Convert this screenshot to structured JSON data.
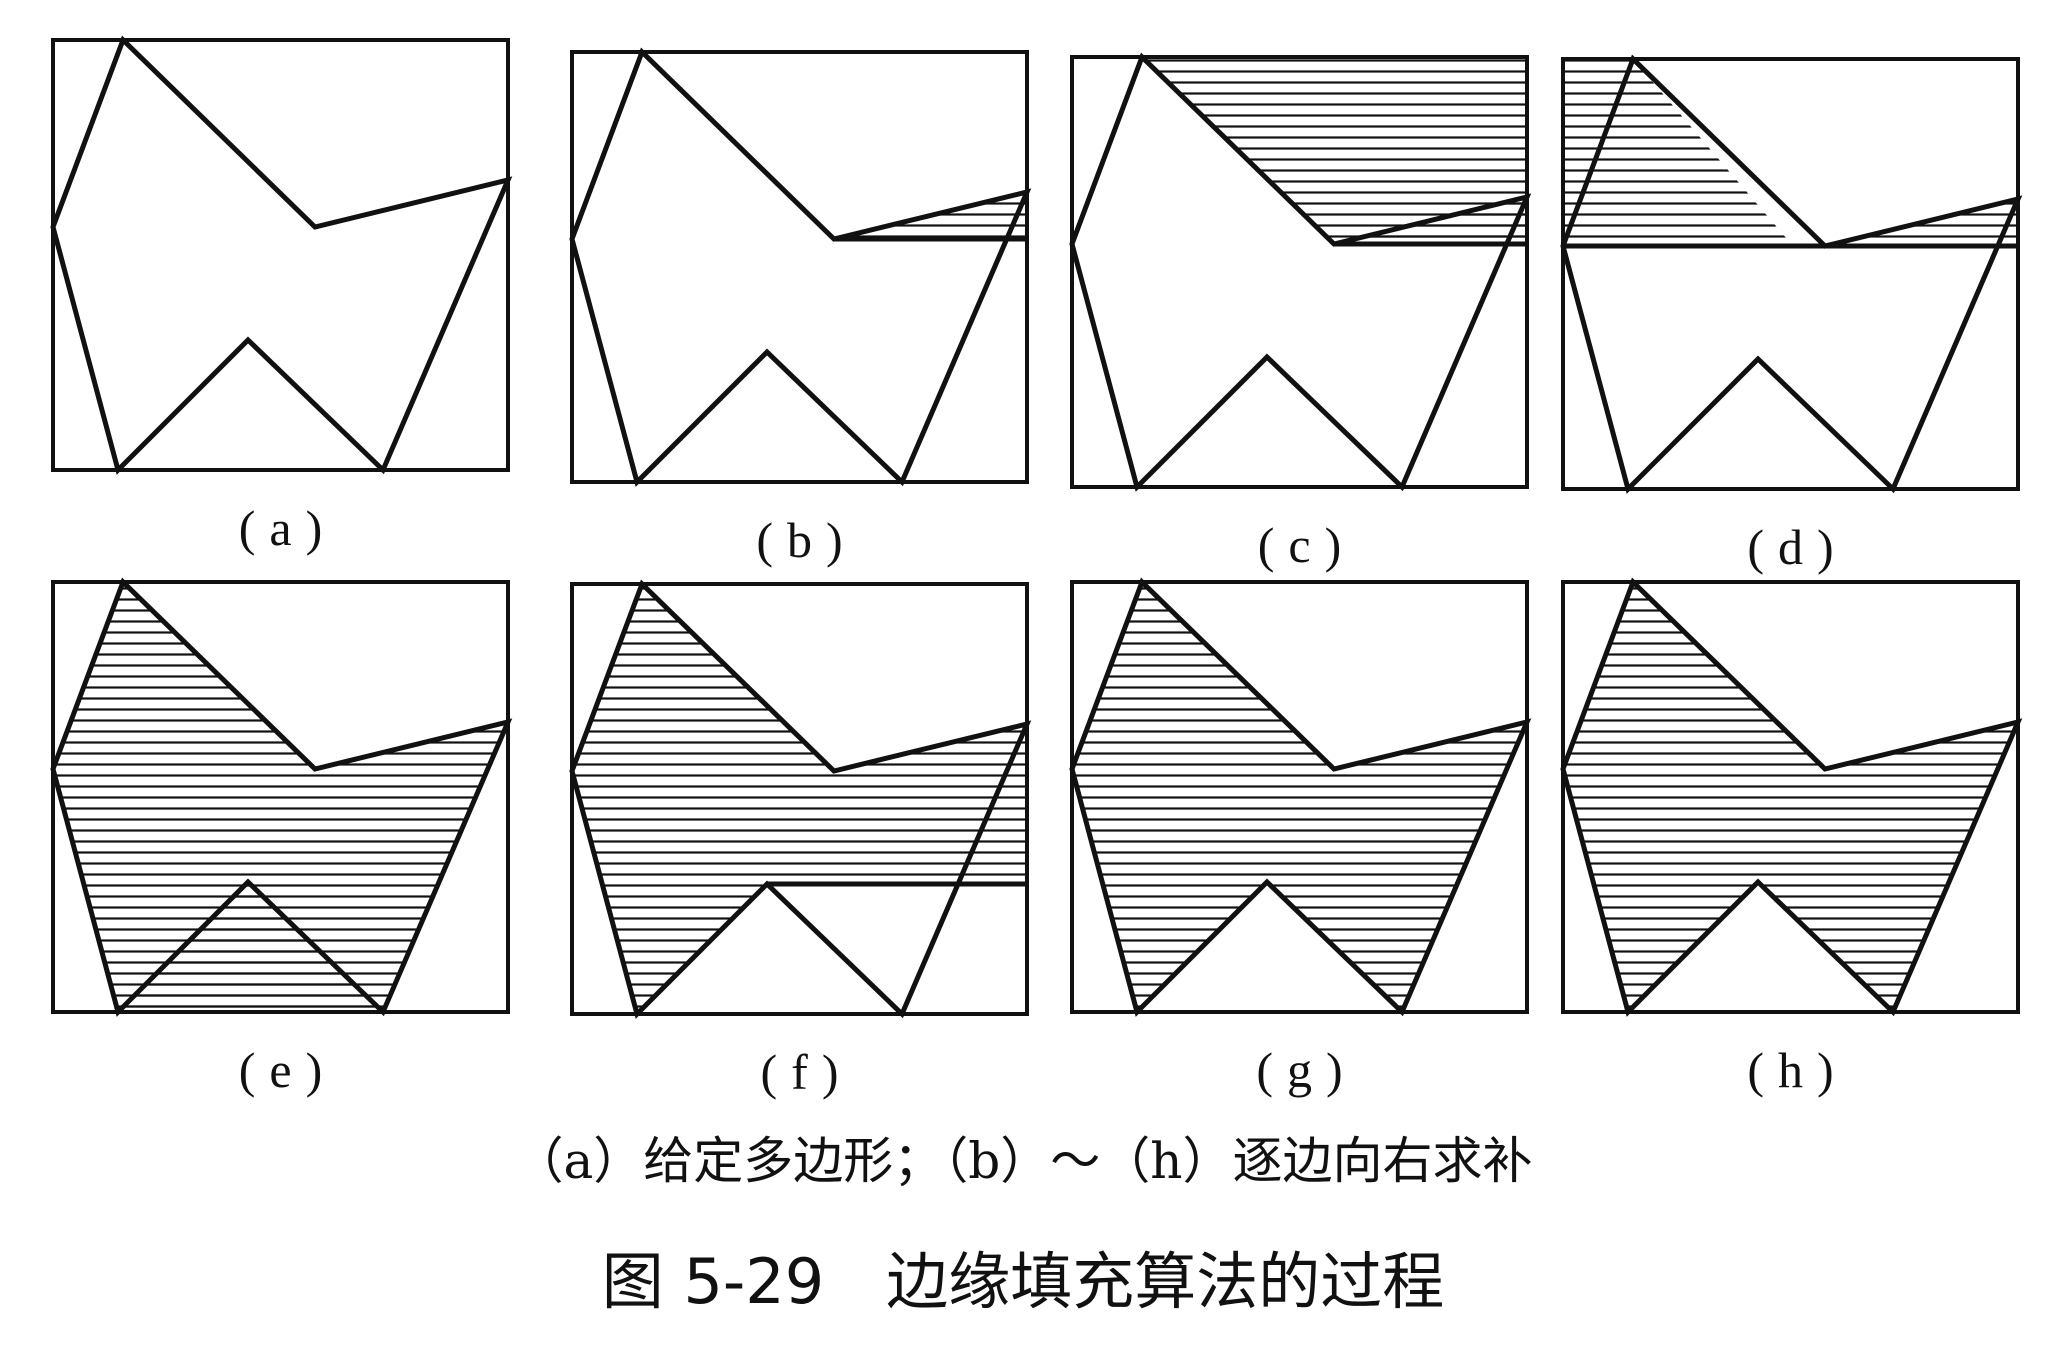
{
  "figure": {
    "panels": [
      {
        "id": "a",
        "label": "(a)"
      },
      {
        "id": "b",
        "label": "(b)"
      },
      {
        "id": "c",
        "label": "(c)"
      },
      {
        "id": "d",
        "label": "(d)"
      },
      {
        "id": "e",
        "label": "(e)"
      },
      {
        "id": "f",
        "label": "(f)"
      },
      {
        "id": "g",
        "label": "(g)"
      },
      {
        "id": "h",
        "label": "(h)"
      }
    ],
    "caption_sub": "（a）给定多边形；（b）～（h）逐边向右求补",
    "caption_main": "图 5-29　边缘填充算法的过程"
  },
  "colors": {
    "ink": "#111111",
    "background": "#ffffff"
  }
}
